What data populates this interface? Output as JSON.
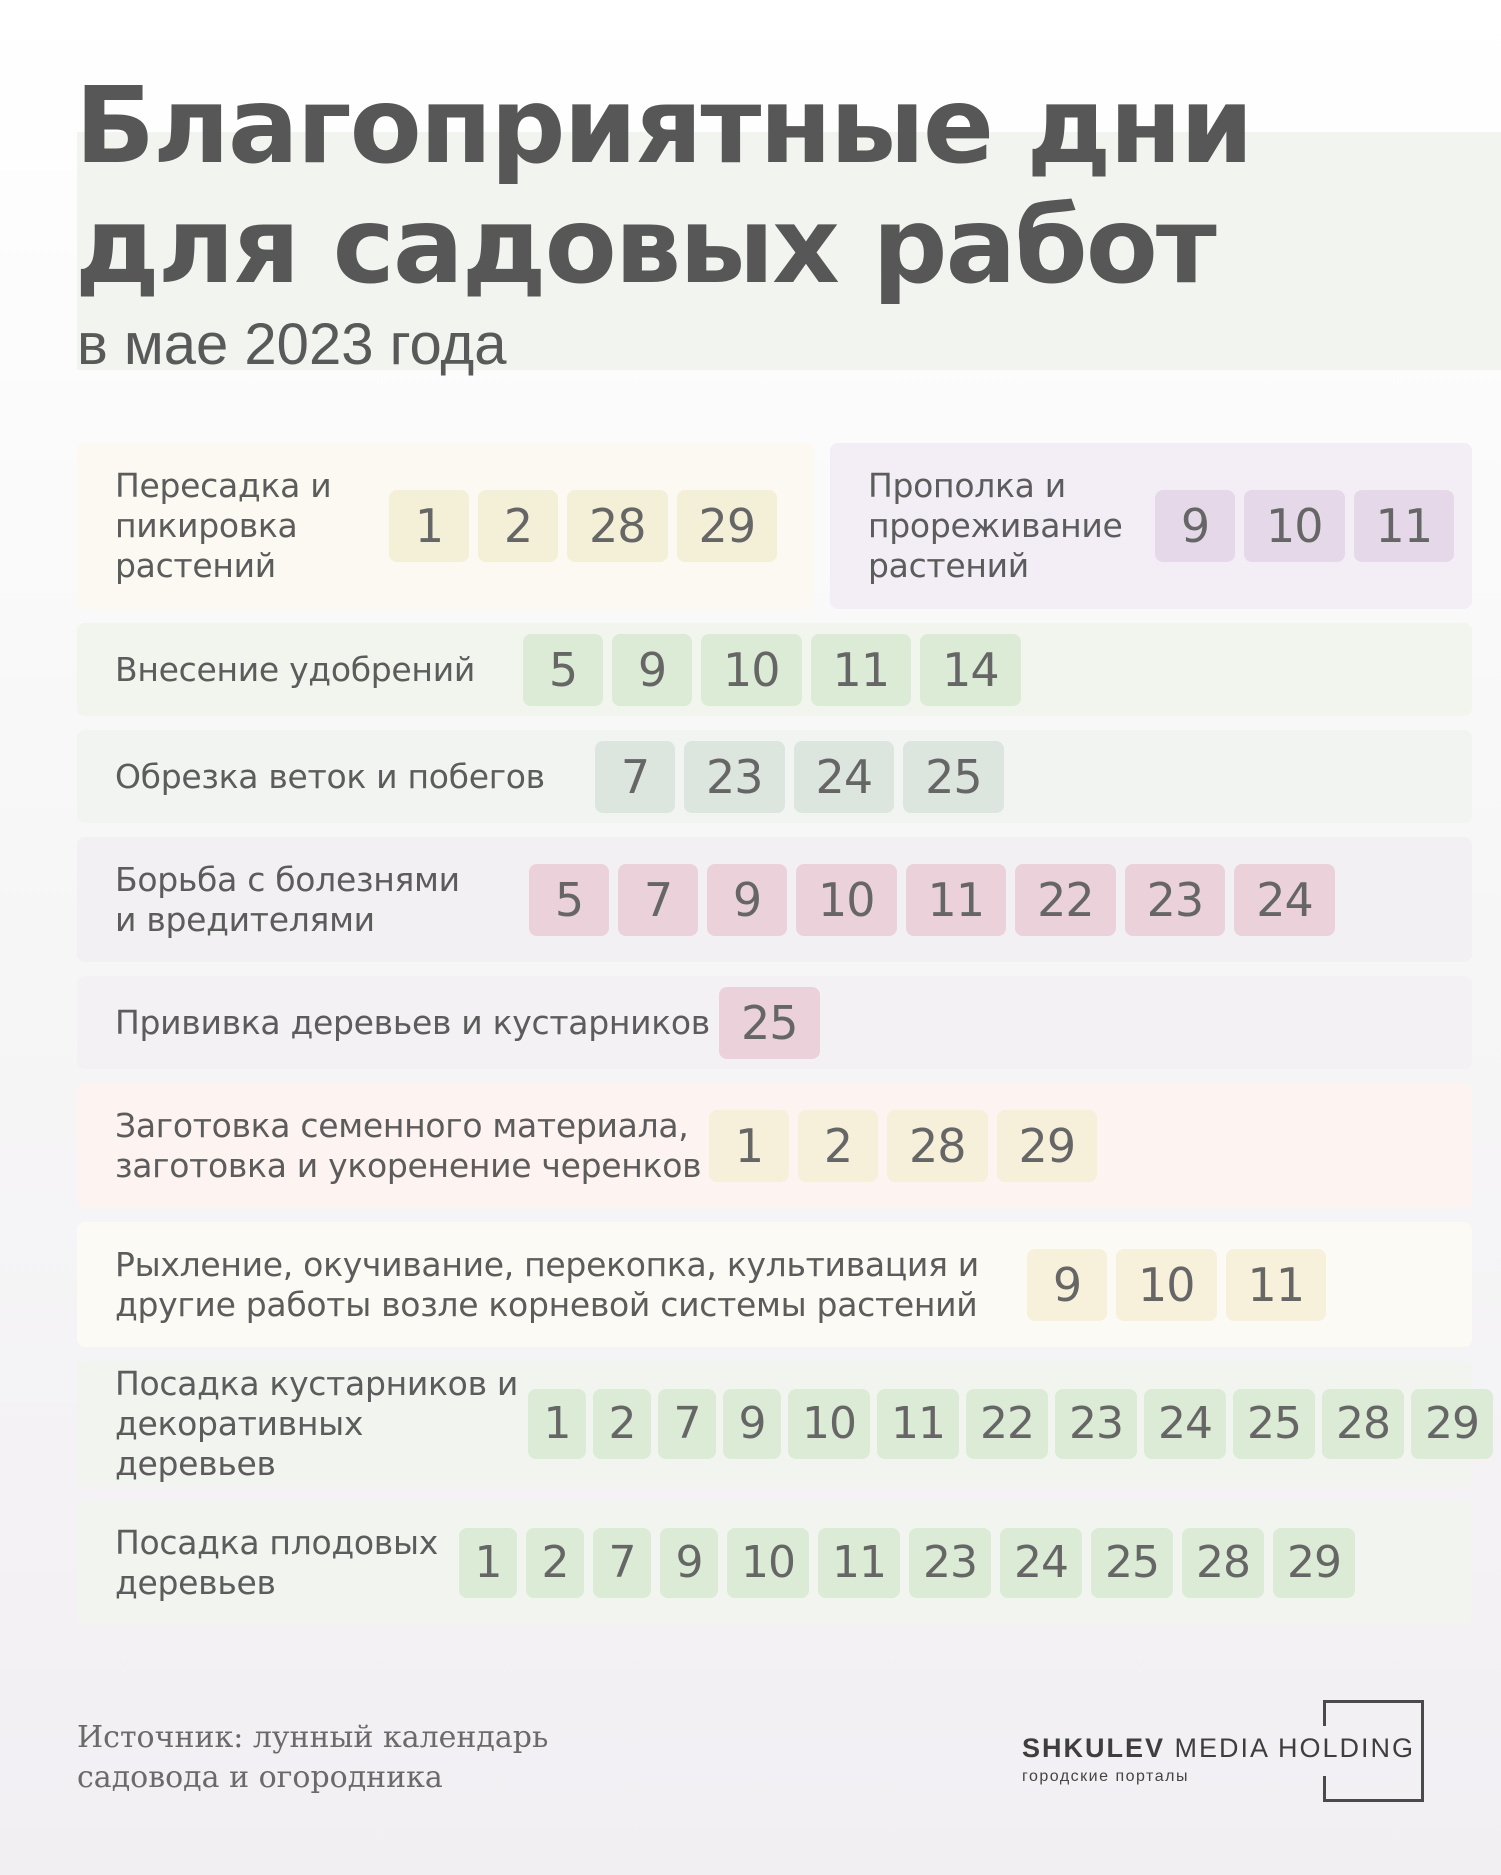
{
  "header": {
    "title_line1": "Благоприятные дни",
    "title_line2": "для садовых работ",
    "subtitle": "в мае 2023 года"
  },
  "rows": [
    {
      "label": "Пересадка и\nпикировка\nрастений",
      "days": [
        "1",
        "2",
        "28",
        "29"
      ],
      "row_color": "#fbf9f1",
      "chip_color": "#f4f0d8"
    },
    {
      "label": "Прополка и\nпрореживание\nрастений",
      "days": [
        "9",
        "10",
        "11"
      ],
      "row_color": "#f3eef5",
      "chip_color": "#e5d9e9"
    },
    {
      "label": "Внесение удобрений",
      "days": [
        "5",
        "9",
        "10",
        "11",
        "14"
      ],
      "row_color": "#f1f5ee",
      "chip_color": "#dcebd5"
    },
    {
      "label": "Обрезка веток и побегов",
      "days": [
        "7",
        "23",
        "24",
        "25"
      ],
      "row_color": "#f1f4f0",
      "chip_color": "#dde5df"
    },
    {
      "label": "Борьба с болезнями\nи вредителями",
      "days": [
        "5",
        "7",
        "9",
        "10",
        "11",
        "22",
        "23",
        "24"
      ],
      "row_color": "#f2f0f2",
      "chip_color": "#ebd1da"
    },
    {
      "label": "Прививка деревьев и кустарников",
      "days": [
        "25"
      ],
      "row_color": "#f3f1f3",
      "chip_color": "#ebd1da"
    },
    {
      "label": "Заготовка семенного материала,\nзаготовка и укоренение черенков",
      "days": [
        "1",
        "2",
        "28",
        "29"
      ],
      "row_color": "#fdf3f1",
      "chip_color": "#f6f0da"
    },
    {
      "label": "Рыхление, окучивание, перекопка, культивация и\nдругие работы возле корневой системы растений",
      "days": [
        "9",
        "10",
        "11"
      ],
      "row_color": "#fcfaf4",
      "chip_color": "#f7f1db"
    },
    {
      "label": "Посадка кустарников и\nдекоративных деревьев",
      "days": [
        "1",
        "2",
        "7",
        "9",
        "10",
        "11",
        "22",
        "23",
        "24",
        "25",
        "28",
        "29"
      ],
      "row_color": "#f1f4ef",
      "chip_color": "#dcebd5"
    },
    {
      "label": "Посадка плодовых\nдеревьев",
      "days": [
        "1",
        "2",
        "7",
        "9",
        "10",
        "11",
        "23",
        "24",
        "25",
        "28",
        "29"
      ],
      "row_color": "#f1f4ef",
      "chip_color": "#dcebd5"
    }
  ],
  "footer": {
    "source": "Источник: лунный календарь\nсадовода и огородника",
    "logo_bold": "SHKULEV",
    "logo_rest": " MEDIA HOLDING",
    "logo_sub": "городские порталы"
  }
}
